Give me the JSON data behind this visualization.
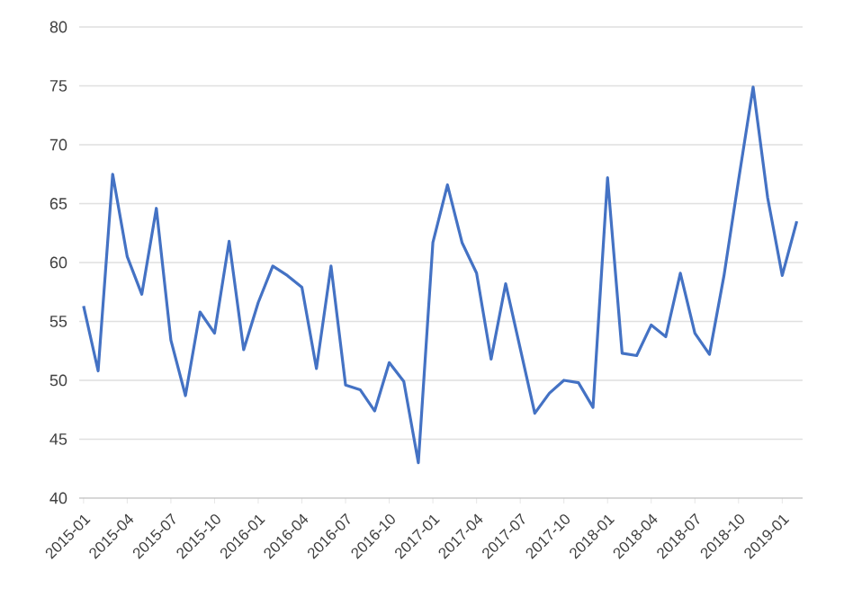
{
  "chart_data": {
    "type": "line",
    "categories": [
      "2015-01",
      null,
      null,
      "2015-04",
      null,
      null,
      "2015-07",
      null,
      null,
      "2015-10",
      null,
      null,
      "2016-01",
      null,
      null,
      "2016-04",
      null,
      null,
      "2016-07",
      null,
      null,
      "2016-10",
      null,
      null,
      "2017-01",
      null,
      null,
      "2017-04",
      null,
      null,
      "2017-07",
      null,
      null,
      "2017-10",
      null,
      null,
      "2018-01",
      null,
      null,
      "2018-04",
      null,
      null,
      "2018-07",
      null,
      null,
      "2018-10",
      null,
      null,
      "2019-01",
      null
    ],
    "series": [
      {
        "color": "#4472c4",
        "values": [
          56.3,
          50.8,
          67.5,
          60.5,
          57.3,
          64.6,
          53.4,
          48.7,
          55.8,
          54.0,
          61.8,
          52.6,
          56.6,
          59.7,
          58.9,
          57.9,
          51.0,
          59.7,
          49.6,
          49.2,
          47.4,
          51.5,
          49.9,
          43.0,
          61.7,
          66.6,
          61.7,
          59.1,
          51.8,
          58.2,
          52.7,
          47.2,
          48.9,
          50.0,
          49.8,
          47.7,
          67.2,
          52.3,
          52.1,
          54.7,
          53.7,
          59.1,
          54.0,
          52.2,
          58.9,
          67.0,
          74.9,
          65.5,
          58.9,
          63.5
        ]
      }
    ],
    "ylim": [
      40,
      80
    ],
    "yticks": [
      40,
      45,
      50,
      55,
      60,
      65,
      70,
      75,
      80
    ],
    "grid": "y",
    "legend": false,
    "marker": "none",
    "line_style": "solid"
  }
}
